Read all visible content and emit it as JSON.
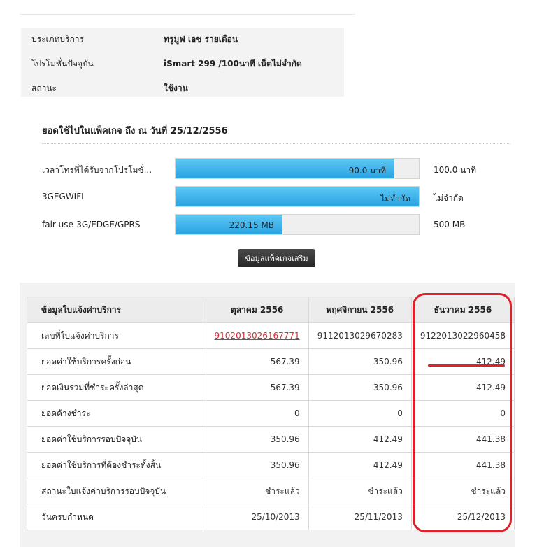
{
  "service_info": {
    "rows": [
      {
        "label": "ประเภทบริการ",
        "value": "ทรูมูฟ เอช รายเดือน"
      },
      {
        "label": "โปรโมชั่นปัจจุบัน",
        "value": "iSmart 299 /100นาที เน็ตไม่จำกัด"
      },
      {
        "label": "สถานะ",
        "value": "ใช้งาน"
      }
    ]
  },
  "usage": {
    "title": "ยอดใช้ไปในแพ็คเกจ ถึง ณ วันที่ 25/12/2556",
    "items": [
      {
        "label": "เวลาโทรที่ได้รับจากโปรโมชั่...",
        "used": "90.0 นาที",
        "limit": "100.0 นาที",
        "used_fraction": 0.9
      },
      {
        "label": "3GEGWIFI",
        "used": "ไม่จำกัด",
        "limit": "ไม่จำกัด",
        "used_fraction": 1.0
      },
      {
        "label": "fair use-3G/EDGE/GPRS",
        "used": "220.15 MB",
        "limit": "500 MB",
        "used_fraction": 0.44
      }
    ],
    "extra_button": "ข้อมูลแพ็คเกจเสริม"
  },
  "bill": {
    "headers": [
      "ข้อมูลใบแจ้งค่าบริการ",
      "ตุลาคม 2556",
      "พฤศจิกายน 2556",
      "ธันวาคม 2556"
    ],
    "rows": [
      {
        "label": "เลขที่ใบแจ้งค่าบริการ",
        "values": [
          "9102013026167771",
          "9112013029670283",
          "9122013022960458"
        ]
      },
      {
        "label": "ยอดค่าใช้บริการครั้งก่อน",
        "values": [
          "567.39",
          "350.96",
          "412.49"
        ]
      },
      {
        "label": "ยอดเงินรวมที่ชำระครั้งล่าสุด",
        "values": [
          "567.39",
          "350.96",
          "412.49"
        ]
      },
      {
        "label": "ยอดค้างชำระ",
        "values": [
          "0",
          "0",
          "0"
        ]
      },
      {
        "label": "ยอดค่าใช้บริการรอบปัจจุบัน",
        "values": [
          "350.96",
          "412.49",
          "441.38"
        ]
      },
      {
        "label": "ยอดค่าใช้บริการที่ต้องชำระทั้งสิ้น",
        "values": [
          "350.96",
          "412.49",
          "441.38"
        ]
      },
      {
        "label": "สถานะใบแจ้งค่าบริการรอบปัจจุบัน",
        "values": [
          "ชำระแล้ว",
          "ชำระแล้ว",
          "ชำระแล้ว"
        ]
      },
      {
        "label": "วันครบกำหนด",
        "values": [
          "25/10/2013",
          "25/11/2013",
          "25/12/2013"
        ]
      }
    ]
  },
  "colors": {
    "bar_fill": "#2aa4e2",
    "annotation": "#e0202a",
    "link": "#d42c2c"
  }
}
